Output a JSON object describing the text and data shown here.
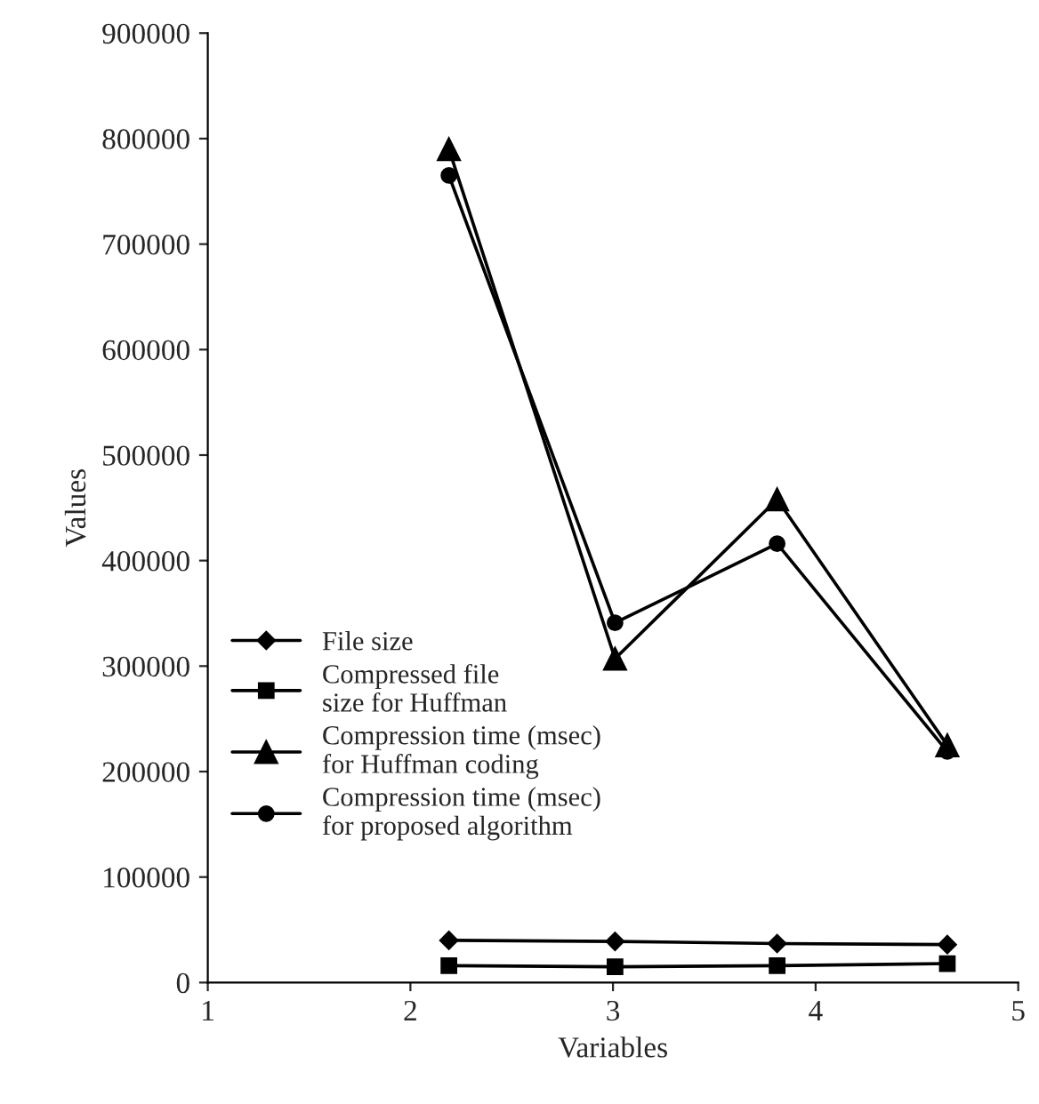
{
  "chart_data": {
    "type": "line",
    "xlabel": "Variables",
    "ylabel": "Values",
    "x": [
      2.19,
      3.01,
      3.81,
      4.65
    ],
    "series": [
      {
        "name": "File size",
        "color": "#000000",
        "marker": "diamond",
        "values": [
          40000,
          39000,
          37000,
          36000
        ]
      },
      {
        "name": "Compressed file\nsize for Huffman",
        "color": "#000000",
        "marker": "square",
        "values": [
          16000,
          15000,
          16000,
          18000
        ]
      },
      {
        "name": "Compression time (msec)\nfor Huffman coding",
        "color": "#000000",
        "marker": "triangle",
        "values": [
          790000,
          307000,
          458000,
          225000
        ]
      },
      {
        "name": "Compression time (msec)\nfor proposed algorithm",
        "color": "#000000",
        "marker": "circle",
        "values": [
          765000,
          341000,
          416000,
          219000
        ]
      }
    ],
    "xlim": [
      1,
      5
    ],
    "xticks": [
      1,
      2,
      3,
      4,
      5
    ],
    "ylim": [
      0,
      900000
    ],
    "yticks": [
      0,
      100000,
      200000,
      300000,
      400000,
      500000,
      600000,
      700000,
      800000,
      900000
    ],
    "grid": false,
    "legend": "left",
    "line_style": "solid"
  }
}
